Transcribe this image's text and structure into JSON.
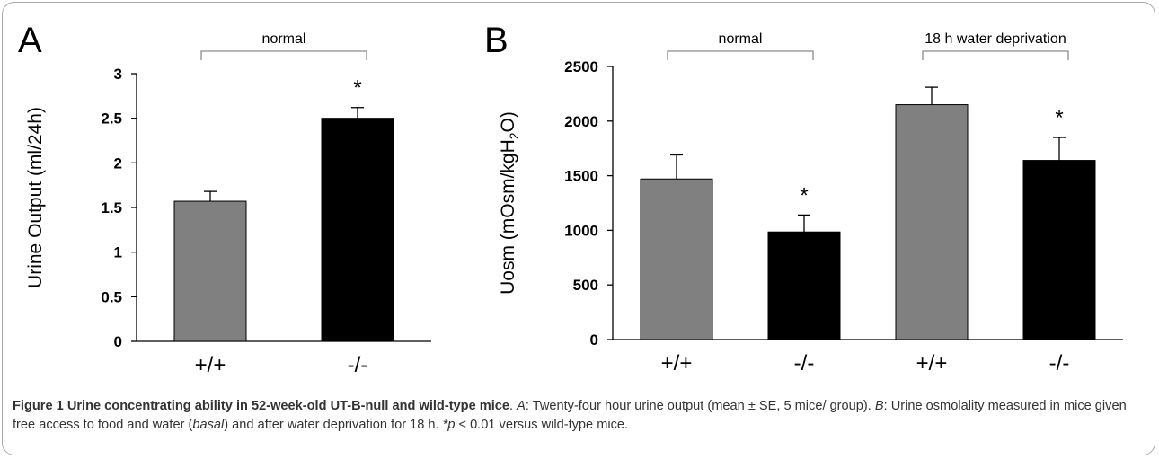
{
  "figure": {
    "caption": {
      "title": "Figure 1 Urine concentrating ability in 52-week-old UT-B-null and wild-type mice",
      "sep1": ". ",
      "label_a": "A",
      "text_a": ": Twenty-four hour urine output (mean ± SE, 5 mice/ group). ",
      "label_b": "B",
      "text_b1": ": Urine osmolality measured in mice given free access to food and water (",
      "basal": "basal",
      "text_b2": ") and after water deprivation for 18 h. ",
      "pmark": "*p",
      "text_end": " < 0.01 versus wild-type mice."
    }
  },
  "chart_data": [
    {
      "type": "bar",
      "panel_label": "A",
      "ylabel": "Urine Output  (ml/24h)",
      "ylim": [
        0,
        3
      ],
      "yticks": [
        "0",
        "0.5",
        "1",
        "1.5",
        "2",
        "2.5",
        "3"
      ],
      "categories": [
        "+/+",
        "-/-"
      ],
      "values": [
        1.57,
        2.5
      ],
      "errors": [
        0.11,
        0.12
      ],
      "bar_colors": [
        "#808080",
        "#000000"
      ],
      "significance": [
        "",
        "*"
      ],
      "groups": [
        {
          "label": "normal",
          "from": 0,
          "to": 1
        }
      ],
      "grid": false
    },
    {
      "type": "bar",
      "panel_label": "B",
      "ylabel_main": "Uosm (mOsm/kgH",
      "ylabel_sub": "2",
      "ylabel_end": "O)",
      "ylim": [
        0,
        2500
      ],
      "yticks": [
        "0",
        "500",
        "1000",
        "1500",
        "2000",
        "2500"
      ],
      "categories": [
        "+/+",
        "-/-",
        "+/+",
        "-/-"
      ],
      "values": [
        1470,
        985,
        2150,
        1640
      ],
      "errors": [
        220,
        155,
        160,
        210
      ],
      "bar_colors": [
        "#808080",
        "#000000",
        "#808080",
        "#000000"
      ],
      "significance": [
        "",
        "*",
        "",
        "*"
      ],
      "groups": [
        {
          "label": "normal",
          "from": 0,
          "to": 1
        },
        {
          "label": "18 h water deprivation",
          "from": 2,
          "to": 3
        }
      ],
      "grid": false
    }
  ]
}
